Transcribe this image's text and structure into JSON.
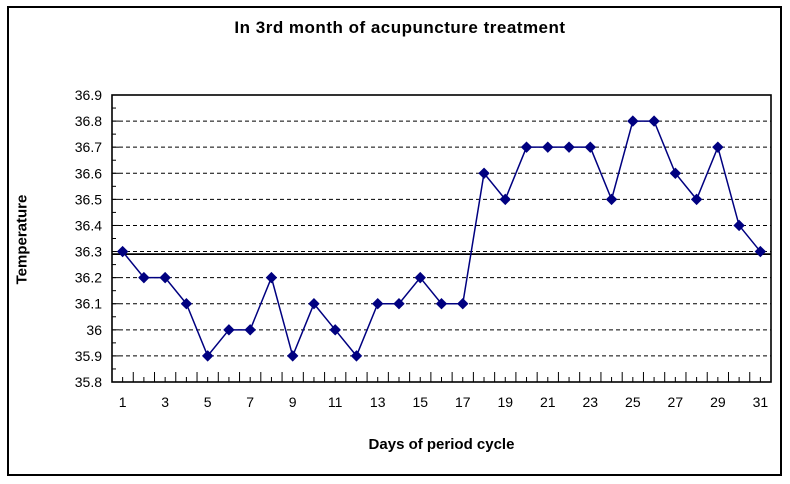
{
  "chart_data": {
    "type": "line",
    "title": "In 3rd month of acupuncture treatment",
    "xlabel": "Days of period cycle",
    "ylabel": "Temperature",
    "x": [
      1,
      2,
      3,
      4,
      5,
      6,
      7,
      8,
      9,
      10,
      11,
      12,
      13,
      14,
      15,
      16,
      17,
      18,
      19,
      20,
      21,
      22,
      23,
      24,
      25,
      26,
      27,
      28,
      29,
      30,
      31
    ],
    "values": [
      36.3,
      36.2,
      36.2,
      36.1,
      35.9,
      36.0,
      36.0,
      36.2,
      35.9,
      36.1,
      36.0,
      35.9,
      36.1,
      36.1,
      36.2,
      36.1,
      36.1,
      36.6,
      36.5,
      36.7,
      36.7,
      36.7,
      36.7,
      36.5,
      36.8,
      36.8,
      36.6,
      36.5,
      36.7,
      36.4,
      36.3
    ],
    "ylim": [
      35.8,
      36.9
    ],
    "ytick_step": 0.1,
    "ytick_minor_step": 0.05,
    "ytick_labels": [
      "35.8",
      "35.9",
      "36",
      "36.1",
      "36.2",
      "36.3",
      "36.4",
      "36.5",
      "36.6",
      "36.7",
      "36.8",
      "36.9"
    ],
    "xtick_labels": [
      "1",
      "3",
      "5",
      "7",
      "9",
      "11",
      "13",
      "15",
      "17",
      "19",
      "21",
      "23",
      "25",
      "27",
      "29",
      "31"
    ],
    "reference_line": {
      "value": 36.29
    },
    "grid": "horizontal-dashed",
    "legend": "none",
    "series_color": "#000080",
    "marker": "diamond",
    "axis_color": "#000000"
  }
}
